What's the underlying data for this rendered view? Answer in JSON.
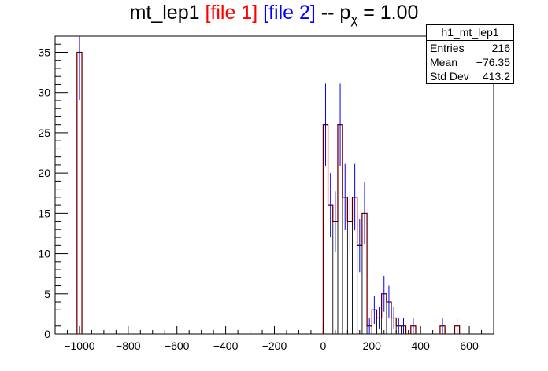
{
  "title": {
    "prefix": "mt_lep1",
    "file1": "[file 1]",
    "file2": "[file 2]",
    "sep": "--",
    "p": "p",
    "chi": "χ",
    "eq": "= 1.00"
  },
  "stats": {
    "name": "h1_mt_lep1",
    "entries_label": "Entries",
    "entries": "216",
    "mean_label": "Mean",
    "mean": "−76.35",
    "std_label": "Std Dev",
    "std": "413.2"
  },
  "colors": {
    "file1": "#ff0000",
    "file2": "#0000ff",
    "axis": "#000000"
  },
  "chart_data": {
    "type": "bar",
    "xlim": [
      -1100,
      700
    ],
    "ylim": [
      0,
      37
    ],
    "xticks": [
      -1000,
      -800,
      -600,
      -400,
      -200,
      0,
      200,
      400,
      600
    ],
    "yticks": [
      0,
      5,
      10,
      15,
      20,
      25,
      30,
      35
    ],
    "bin_width": 20,
    "bins": [
      {
        "x": -1000,
        "v": 35
      },
      {
        "x": 10,
        "v": 26
      },
      {
        "x": 30,
        "v": 16
      },
      {
        "x": 50,
        "v": 14
      },
      {
        "x": 70,
        "v": 26
      },
      {
        "x": 90,
        "v": 17
      },
      {
        "x": 110,
        "v": 14
      },
      {
        "x": 130,
        "v": 17
      },
      {
        "x": 150,
        "v": 11
      },
      {
        "x": 170,
        "v": 15
      },
      {
        "x": 190,
        "v": 1
      },
      {
        "x": 210,
        "v": 3
      },
      {
        "x": 230,
        "v": 2
      },
      {
        "x": 250,
        "v": 5
      },
      {
        "x": 270,
        "v": 4
      },
      {
        "x": 290,
        "v": 2
      },
      {
        "x": 310,
        "v": 1
      },
      {
        "x": 330,
        "v": 1
      },
      {
        "x": 370,
        "v": 1
      },
      {
        "x": 490,
        "v": 1
      },
      {
        "x": 550,
        "v": 1
      }
    ]
  }
}
